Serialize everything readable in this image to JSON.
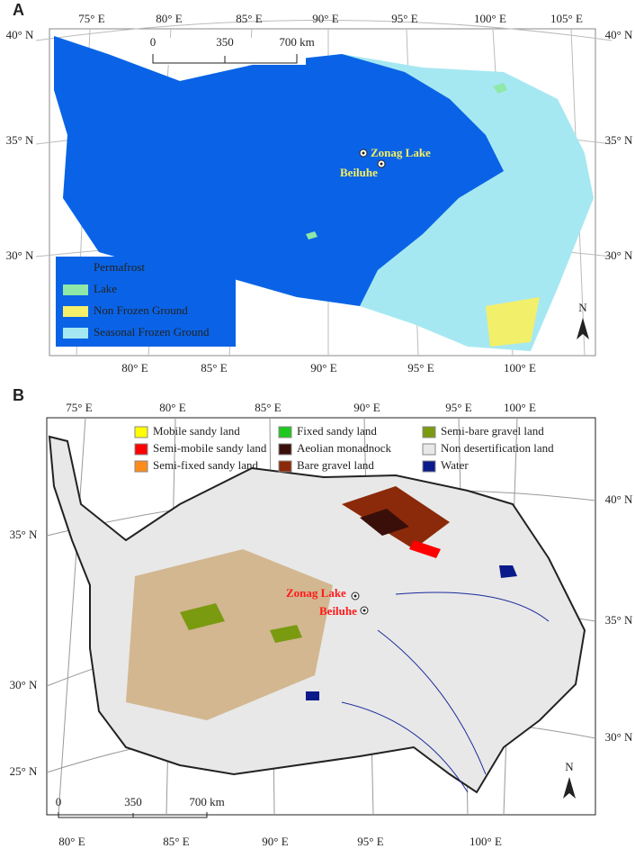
{
  "panels": [
    {
      "label": "A",
      "lon_top": [
        "75° E",
        "80° E",
        "85° E",
        "90° E",
        "95° E",
        "100° E",
        "105° E"
      ],
      "lat_left": [
        "40° N",
        "35° N",
        "30° N"
      ],
      "lat_right": [
        "40° N",
        "35° N",
        "30° N"
      ],
      "lon_bottom": [
        "80° E",
        "85° E",
        "90° E",
        "95° E",
        "100° E"
      ],
      "scale": [
        "0",
        "350",
        "700 km"
      ],
      "legend": [
        "Permafrost",
        "Lake",
        "Non Frozen Ground",
        "Seasonal Frozen Ground"
      ],
      "sites": [
        "Zonag Lake",
        "Beiluhe"
      ],
      "north": "N"
    },
    {
      "label": "B",
      "lon_top": [
        "75° E",
        "80° E",
        "85° E",
        "90° E",
        "95° E",
        "100° E"
      ],
      "lat_left": [
        "35° N",
        "30° N",
        "25° N"
      ],
      "lat_right": [
        "40° N",
        "35° N",
        "30° N"
      ],
      "lon_bottom": [
        "80° E",
        "85° E",
        "90° E",
        "95° E",
        "100° E"
      ],
      "scale": [
        "0",
        "350",
        "700 km"
      ],
      "legend": [
        "Mobile sandy land",
        "Semi-mobile sandy land",
        "Semi-fixed sandy land",
        "Fixed sandy land",
        "Aeolian monadnock",
        "Bare gravel land",
        "Semi-bare gravel land",
        "Non desertification land",
        "Water"
      ],
      "sites": [
        "Zonag Lake",
        "Beiluhe"
      ],
      "north": "N"
    }
  ]
}
